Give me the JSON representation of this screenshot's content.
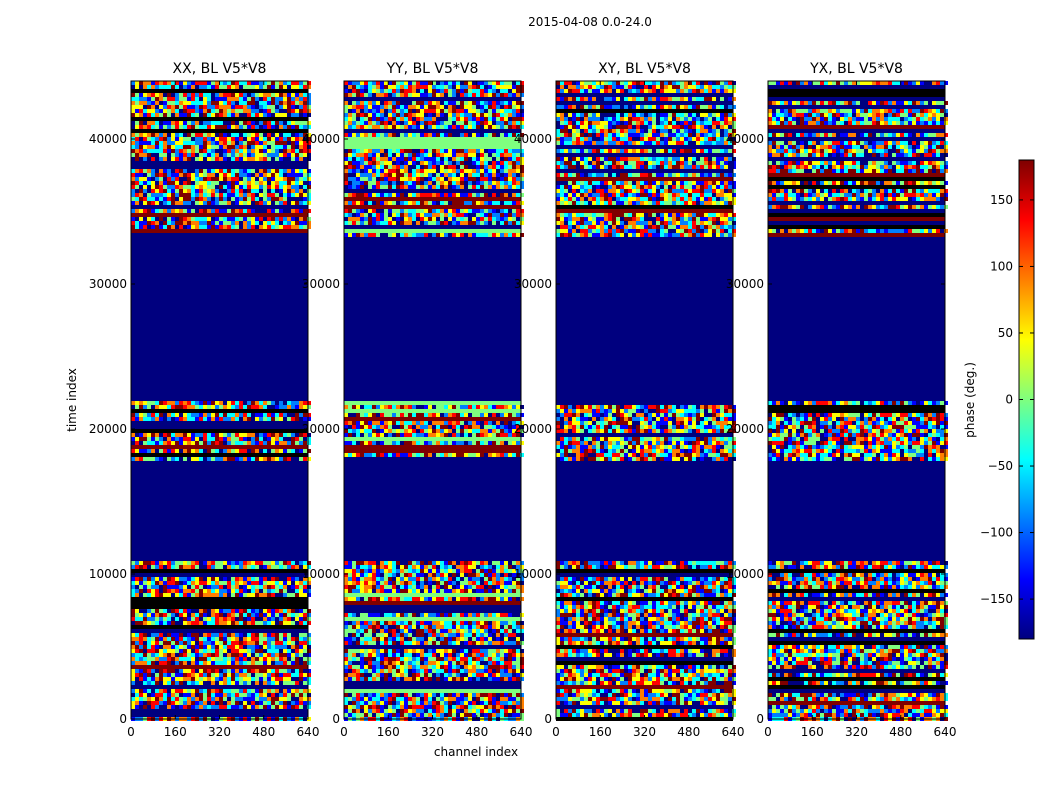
{
  "figure": {
    "suptitle": "2015-04-08 0.0-24.0"
  },
  "chart_data": {
    "type": "heatmap",
    "xlabel": "channel index",
    "ylabel": "time index",
    "xlim": [
      0,
      640
    ],
    "ylim": [
      0,
      44000
    ],
    "xticks": [
      "0",
      "160",
      "320",
      "480",
      "640"
    ],
    "yticks": [
      "0",
      "10000",
      "20000",
      "30000",
      "40000"
    ],
    "panels": [
      {
        "title": "XX, BL V5*V8"
      },
      {
        "title": "YY, BL V5*V8"
      },
      {
        "title": "XY, BL V5*V8"
      },
      {
        "title": "YX, BL V5*V8"
      }
    ],
    "blank_time_ranges": [
      [
        11000,
        18000
      ],
      [
        22000,
        33500
      ]
    ],
    "colorbar": {
      "label": "phase (deg.)",
      "range": [
        -180,
        180
      ],
      "ticks": [
        "150",
        "100",
        "50",
        "0",
        "−50",
        "−100",
        "−150"
      ],
      "colormap": "jet"
    },
    "colors": {
      "fill_value": "#00007f",
      "jet": [
        "#00007f",
        "#0000ff",
        "#007fff",
        "#00ffff",
        "#7fff7f",
        "#ffff00",
        "#ff7f00",
        "#ff0000",
        "#7f0000"
      ]
    }
  }
}
